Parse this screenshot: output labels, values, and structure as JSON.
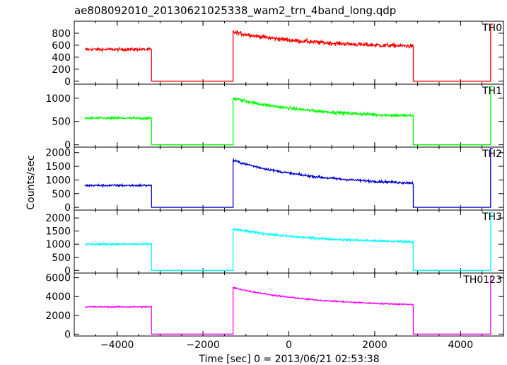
{
  "chart_data": {
    "type": "line",
    "title": "ae808092010_20130621025338_wam2_trn_4band_long.qdp",
    "xlabel": "Time [sec] 0 = 2013/06/21 02:53:38",
    "ylabel": "Counts/sec",
    "xlim": [
      -5000,
      5000
    ],
    "xticks": [
      -4000,
      -2000,
      0,
      2000,
      4000
    ],
    "grid": false,
    "legend": "none",
    "panels": [
      {
        "name": "TH0",
        "color": "#ff0000",
        "ylim": [
          -50,
          1000
        ],
        "yticks": [
          0,
          200,
          400,
          600,
          800
        ],
        "level_a": 530,
        "noise_a": 25,
        "peak_b": 820,
        "level_b_end": 560,
        "noise_b": 35,
        "spike_end": 950
      },
      {
        "name": "TH1",
        "color": "#00ff00",
        "ylim": [
          -50,
          1300
        ],
        "yticks": [
          0,
          500,
          1000
        ],
        "level_a": 570,
        "noise_a": 30,
        "peak_b": 1000,
        "level_b_end": 580,
        "noise_b": 35,
        "spike_end": 1250
      },
      {
        "name": "TH2",
        "color": "#0000cc",
        "ylim": [
          -100,
          2200
        ],
        "yticks": [
          0,
          500,
          1000,
          1500,
          2000
        ],
        "level_a": 800,
        "noise_a": 40,
        "peak_b": 1720,
        "level_b_end": 800,
        "noise_b": 45,
        "spike_end": 2150
      },
      {
        "name": "TH3",
        "color": "#00ffff",
        "ylim": [
          -100,
          2300
        ],
        "yticks": [
          0,
          500,
          1000,
          1500,
          2000
        ],
        "level_a": 1000,
        "noise_a": 40,
        "peak_b": 1580,
        "level_b_end": 1040,
        "noise_b": 45,
        "spike_end": 2200
      },
      {
        "name": "TH0123",
        "color": "#ff00ff",
        "ylim": [
          -200,
          6500
        ],
        "yticks": [
          0,
          2000,
          4000,
          6000
        ],
        "level_a": 2900,
        "noise_a": 70,
        "peak_b": 4950,
        "level_b_end": 2950,
        "noise_b": 80,
        "spike_end": 6100
      }
    ],
    "segments": {
      "a_start": -4750,
      "a_end": -3200,
      "gap1_end": -1300,
      "b_end": 2900,
      "gap2_end": 4700,
      "x_end": 4750
    }
  }
}
